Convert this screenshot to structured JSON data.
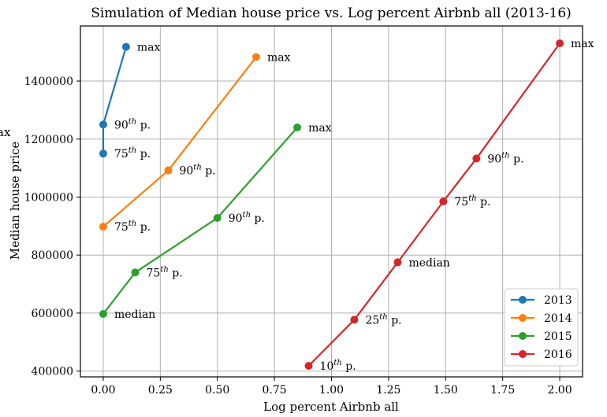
{
  "chart_data": {
    "type": "line",
    "title": "Simulation of Median house price vs. Log percent Airbnb all (2013-16)",
    "xlabel": "Log percent Airbnb all",
    "ylabel": "Median house price",
    "left_edge_fragment": "ax",
    "xlim": [
      -0.1,
      2.1
    ],
    "ylim": [
      380000,
      1590000
    ],
    "x_ticks": [
      0.0,
      0.25,
      0.5,
      0.75,
      1.0,
      1.25,
      1.5,
      1.75,
      2.0
    ],
    "x_tick_labels": [
      "0.00",
      "0.25",
      "0.50",
      "0.75",
      "1.00",
      "1.25",
      "1.50",
      "1.75",
      "2.00"
    ],
    "y_ticks": [
      400000,
      600000,
      800000,
      1000000,
      1200000,
      1400000
    ],
    "y_tick_labels": [
      "400000",
      "600000",
      "800000",
      "1000000",
      "1200000",
      "1400000"
    ],
    "grid": true,
    "legend_position": "bottom-right",
    "series": [
      {
        "name": "2013",
        "color": "#1f77b4",
        "points": [
          {
            "x": 0.0,
            "y": 1150000,
            "label": ""
          },
          {
            "x": 0.0,
            "y": 1250000,
            "label": ""
          },
          {
            "x": 0.1,
            "y": 1518000,
            "label": "max"
          }
        ]
      },
      {
        "name": "2014",
        "color": "#ff7f0e",
        "points": [
          {
            "x": 0.0,
            "y": 898000,
            "label": ""
          },
          {
            "x": 0.285,
            "y": 1092000,
            "label": ""
          },
          {
            "x": 0.67,
            "y": 1483000,
            "label": "max"
          }
        ]
      },
      {
        "name": "2015",
        "color": "#2ca02c",
        "points": [
          {
            "x": 0.0,
            "y": 597000,
            "label": "median"
          },
          {
            "x": 0.14,
            "y": 740000,
            "label": ""
          },
          {
            "x": 0.5,
            "y": 928000,
            "label": ""
          },
          {
            "x": 0.85,
            "y": 1240000,
            "label": "max"
          }
        ]
      },
      {
        "name": "2016",
        "color": "#d62728",
        "points": [
          {
            "x": 0.9,
            "y": 418000,
            "label": ""
          },
          {
            "x": 1.1,
            "y": 577000,
            "label": ""
          },
          {
            "x": 1.29,
            "y": 775000,
            "label": "median"
          },
          {
            "x": 1.49,
            "y": 985000,
            "label": ""
          },
          {
            "x": 1.635,
            "y": 1133000,
            "label": ""
          },
          {
            "x": 2.0,
            "y": 1530000,
            "label": "max"
          }
        ]
      }
    ],
    "percentile_labels": [
      {
        "x": 0.0,
        "y": 1250000,
        "ordinal": "90",
        "sup": "th",
        "suffix": "p."
      },
      {
        "x": 0.0,
        "y": 1150000,
        "ordinal": "75",
        "sup": "th",
        "suffix": "p."
      },
      {
        "x": 0.285,
        "y": 1092000,
        "ordinal": "90",
        "sup": "th",
        "suffix": "p."
      },
      {
        "x": 0.0,
        "y": 898000,
        "ordinal": "75",
        "sup": "th",
        "suffix": "p."
      },
      {
        "x": 0.5,
        "y": 928000,
        "ordinal": "90",
        "sup": "th",
        "suffix": "p."
      },
      {
        "x": 0.14,
        "y": 740000,
        "ordinal": "75",
        "sup": "th",
        "suffix": "p."
      },
      {
        "x": 1.635,
        "y": 1133000,
        "ordinal": "90",
        "sup": "th",
        "suffix": "p."
      },
      {
        "x": 1.49,
        "y": 985000,
        "ordinal": "75",
        "sup": "th",
        "suffix": "p."
      },
      {
        "x": 1.1,
        "y": 577000,
        "ordinal": "25",
        "sup": "th",
        "suffix": "p."
      },
      {
        "x": 0.9,
        "y": 418000,
        "ordinal": "10",
        "sup": "th",
        "suffix": "p."
      }
    ]
  }
}
